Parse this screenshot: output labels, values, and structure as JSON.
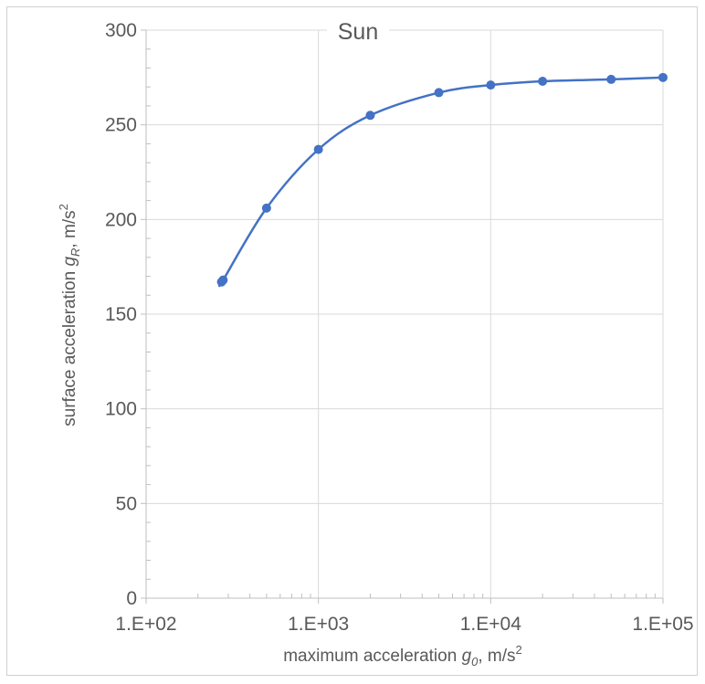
{
  "chart_data": {
    "type": "scatter",
    "title": "Sun",
    "xlabel": {
      "prefix": "maximum acceleration ",
      "var": "g",
      "sub": "0",
      "unit": ", m/s",
      "sup": "2"
    },
    "ylabel": {
      "prefix": "surface acceleration ",
      "var": "g",
      "sub": "R",
      "unit": ", m/s",
      "sup": "2"
    },
    "x_scale": "log",
    "xlim": [
      100,
      100000
    ],
    "ylim": [
      0,
      300
    ],
    "x_ticks": [
      100,
      1000,
      10000,
      100000
    ],
    "x_tick_labels": [
      "1.E+02",
      "1.E+03",
      "1.E+04",
      "1.E+05"
    ],
    "y_ticks": [
      0,
      50,
      100,
      150,
      200,
      250,
      300
    ],
    "y_tick_labels": [
      "0",
      "50",
      "100",
      "150",
      "200",
      "250",
      "300"
    ],
    "grid": true,
    "series": [
      {
        "color": "#4472C4",
        "x": [
          274,
          280,
          500,
          1000,
          2000,
          5000,
          10000,
          20000,
          50000,
          100000
        ],
        "y": [
          167,
          168,
          206,
          237,
          255,
          267,
          271,
          273,
          274,
          275
        ]
      }
    ]
  }
}
